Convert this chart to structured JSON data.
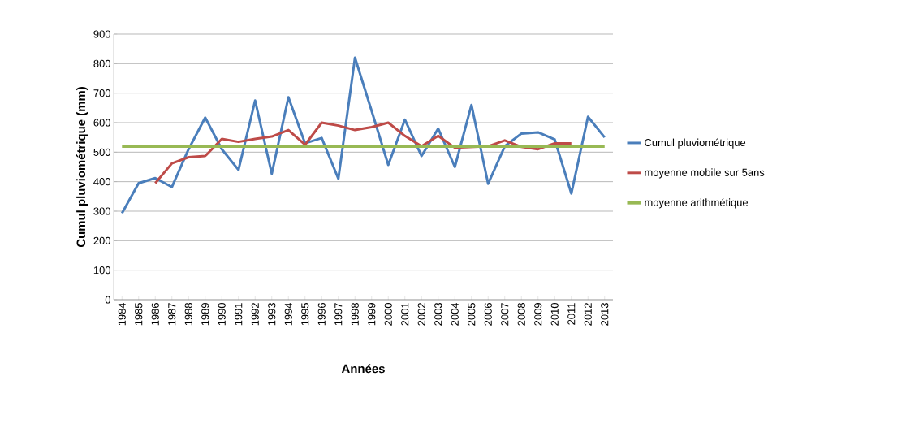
{
  "chart_data": {
    "type": "line",
    "xlabel": "Années",
    "ylabel": "Cumul  pluviométrique (mm)",
    "categories": [
      "1984",
      "1985",
      "1986",
      "1987",
      "1988",
      "1989",
      "1990",
      "1991",
      "1992",
      "1993",
      "1994",
      "1995",
      "1996",
      "1997",
      "1998",
      "1999",
      "2000",
      "2001",
      "2002",
      "2003",
      "2004",
      "2005",
      "2006",
      "2007",
      "2008",
      "2009",
      "2010",
      "2011",
      "2012",
      "2013"
    ],
    "series": [
      {
        "name": "Cumul pluviométrique",
        "color": "#4a7ebb",
        "values": [
          293,
          395,
          412,
          382,
          510,
          617,
          510,
          440,
          675,
          427,
          686,
          530,
          548,
          410,
          820,
          640,
          457,
          610,
          487,
          580,
          450,
          660,
          393,
          520,
          563,
          567,
          543,
          360,
          620,
          550
        ]
      },
      {
        "name": "moyenne mobile sur 5ans",
        "color": "#be4b48",
        "values": [
          null,
          null,
          395,
          462,
          483,
          487,
          545,
          535,
          545,
          553,
          575,
          525,
          600,
          590,
          575,
          585,
          600,
          555,
          520,
          555,
          515,
          null,
          520,
          540,
          518,
          510,
          530,
          530,
          null,
          null
        ]
      },
      {
        "name": "moyenne arithmétique",
        "color": "#98b954",
        "values": [
          520,
          520,
          520,
          520,
          520,
          520,
          520,
          520,
          520,
          520,
          520,
          520,
          520,
          520,
          520,
          520,
          520,
          520,
          520,
          520,
          520,
          520,
          520,
          520,
          520,
          520,
          520,
          520,
          520,
          520
        ]
      }
    ],
    "ylim": [
      0,
      900
    ],
    "yticks": [
      0,
      100,
      200,
      300,
      400,
      500,
      600,
      700,
      800,
      900
    ],
    "grid": "y",
    "legend": "right",
    "marker": "none",
    "line_style": "solid"
  }
}
